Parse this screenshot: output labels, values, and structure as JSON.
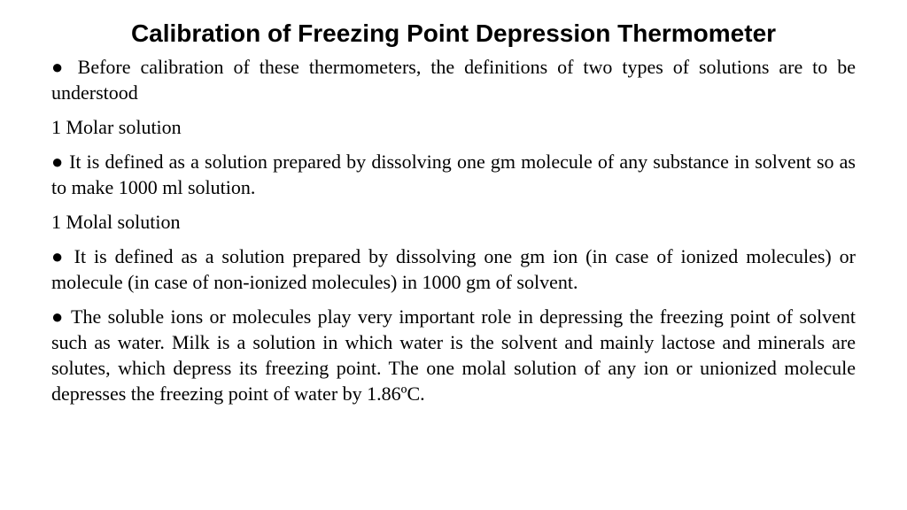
{
  "title": "Calibration of Freezing Point Depression Thermometer",
  "p1": "● Before calibration of these thermometers, the definitions of two types of solutions are to be understood",
  "label1": "1 Molar solution",
  "p2": "● It is defined as a solution prepared by dissolving one gm molecule of any substance in solvent so as to make 1000 ml solution.",
  "label2": "1 Molal solution",
  "p3": "● It is defined as a solution prepared by dissolving one gm ion (in case of ionized molecules) or molecule (in case of non-ionized molecules) in 1000 gm of solvent.",
  "p4": "● The soluble ions or molecules play very important role in depressing the freezing point of solvent such as water. Milk is a solution in which water is the solvent and mainly lactose and minerals are solutes, which depress its freezing point. The one molal solution of any ion or unionized molecule depresses the freezing point of water by 1.86ºC.",
  "colors": {
    "text": "#000000",
    "background": "#ffffff"
  },
  "typography": {
    "title_font": "Verdana/Futura-like sans-serif",
    "title_size_pt": 21,
    "title_weight": "heavy",
    "body_font": "Times/Georgia serif",
    "body_size_pt": 17,
    "body_align": "justify"
  }
}
